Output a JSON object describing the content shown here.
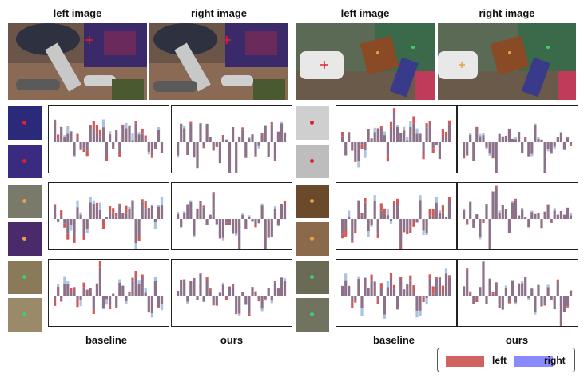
{
  "headers": [
    "left image",
    "right image",
    "left image",
    "right image"
  ],
  "footers": [
    "baseline",
    "ours",
    "baseline",
    "ours"
  ],
  "legend": {
    "left_label": "left",
    "right_label": "right",
    "left_color": "#d16262",
    "right_color": "#8a8aff"
  },
  "colors": {
    "left_bar": "#cf5a5a",
    "right_bar": "#a9c3e0",
    "overlap_bar": "#8c7189"
  },
  "marker_colors": {
    "red": "#e0202a",
    "orange": "#e8a14a",
    "green": "#3fcf6a"
  },
  "icons": [
    "plus-marker-icon",
    "star-marker-icon",
    "dot-marker-icon"
  ]
}
